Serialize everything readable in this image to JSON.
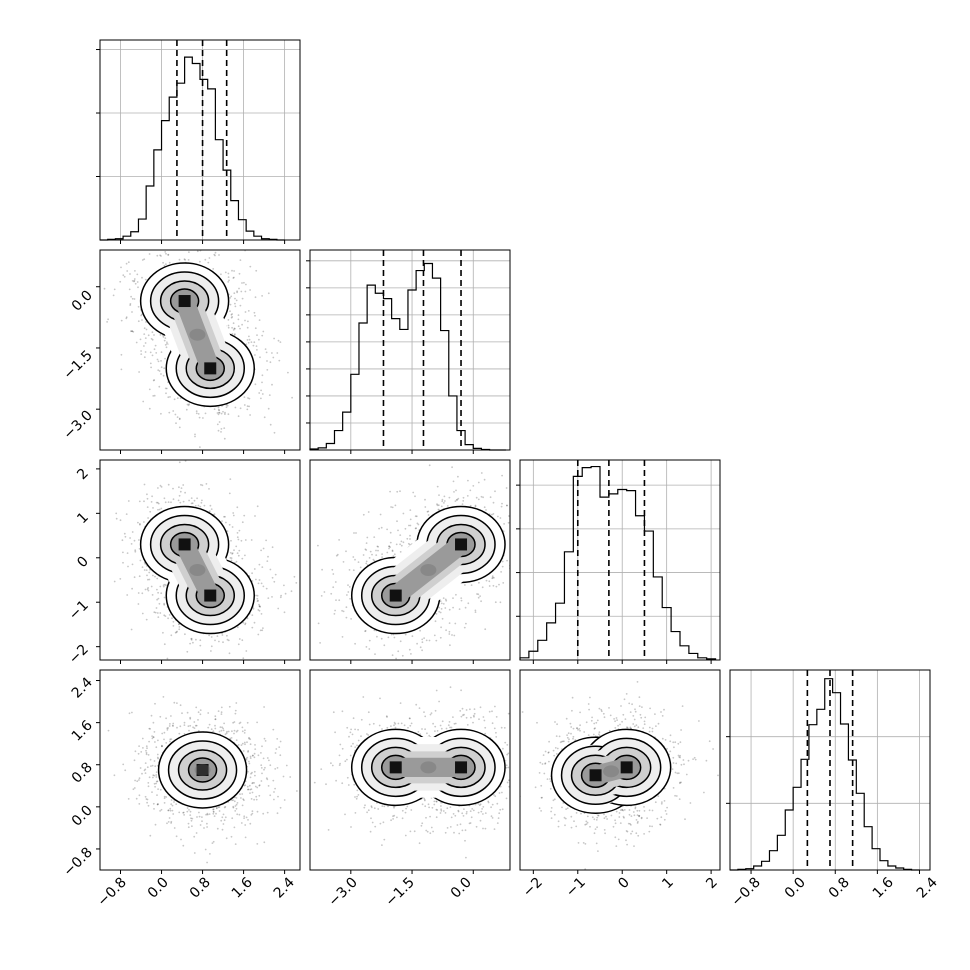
{
  "chart_data": [
    {
      "type": "histogram",
      "panel": [
        0,
        0
      ],
      "variable": 0,
      "range": [
        -1.2,
        2.7
      ],
      "bin_edges": [
        -1.2,
        -1.05,
        -0.9,
        -0.75,
        -0.6,
        -0.45,
        -0.3,
        -0.15,
        0.0,
        0.15,
        0.3,
        0.45,
        0.6,
        0.75,
        0.9,
        1.05,
        1.2,
        1.35,
        1.5,
        1.65,
        1.8,
        1.95,
        2.1,
        2.25,
        2.4
      ],
      "counts": [
        0,
        10,
        20,
        60,
        130,
        330,
        850,
        1420,
        1880,
        2250,
        2470,
        2880,
        2780,
        2530,
        2380,
        1580,
        1100,
        620,
        320,
        140,
        60,
        20,
        10,
        0
      ],
      "count_ymax": 3150,
      "quantile_lines": [
        0.3,
        0.8,
        1.27
      ],
      "grid_x": [
        -0.8,
        0.0,
        0.8,
        1.6,
        2.4
      ],
      "grid_y": [
        1000,
        2000,
        3000
      ]
    },
    {
      "type": "histogram",
      "panel": [
        1,
        1
      ],
      "variable": 1,
      "range": [
        -4.0,
        0.9
      ],
      "bin_edges": [
        -4.0,
        -3.8,
        -3.6,
        -3.4,
        -3.2,
        -3.0,
        -2.8,
        -2.6,
        -2.4,
        -2.2,
        -2.0,
        -1.8,
        -1.6,
        -1.4,
        -1.2,
        -1.0,
        -0.8,
        -0.6,
        -0.4,
        -0.2,
        0.0,
        0.2,
        0.4,
        0.6,
        0.8
      ],
      "counts": [
        20,
        40,
        120,
        360,
        700,
        1400,
        2350,
        3050,
        2900,
        2800,
        2430,
        2230,
        2960,
        3320,
        3450,
        3180,
        2210,
        1000,
        360,
        100,
        30,
        10,
        0,
        0
      ],
      "count_ymax": 3700,
      "quantile_lines": [
        -2.2,
        -1.22,
        -0.3
      ],
      "grid_x": [
        -3.0,
        -1.5,
        0.0
      ],
      "grid_y": [
        500,
        1000,
        1500,
        2000,
        2500,
        3000,
        3500
      ]
    },
    {
      "type": "histogram",
      "panel": [
        2,
        2
      ],
      "variable": 2,
      "range": [
        -2.3,
        2.2
      ],
      "bin_edges": [
        -2.3,
        -2.1,
        -1.9,
        -1.7,
        -1.5,
        -1.3,
        -1.1,
        -0.9,
        -0.7,
        -0.5,
        -0.3,
        -0.1,
        0.1,
        0.3,
        0.5,
        0.7,
        0.9,
        1.1,
        1.3,
        1.5,
        1.7,
        1.9,
        2.1
      ],
      "counts": [
        20,
        80,
        180,
        340,
        520,
        990,
        1680,
        1760,
        1770,
        1490,
        1520,
        1560,
        1550,
        1320,
        1180,
        760,
        480,
        260,
        130,
        60,
        20,
        10
      ],
      "count_ymax": 1830,
      "quantile_lines": [
        -1.0,
        -0.3,
        0.5
      ],
      "grid_x": [
        -2,
        -1,
        0,
        1,
        2
      ],
      "grid_y": [
        400,
        800,
        1200,
        1600
      ]
    },
    {
      "type": "histogram",
      "panel": [
        3,
        3
      ],
      "variable": 3,
      "range": [
        -1.2,
        2.6
      ],
      "bin_edges": [
        -1.2,
        -1.05,
        -0.9,
        -0.75,
        -0.6,
        -0.45,
        -0.3,
        -0.15,
        0.0,
        0.15,
        0.3,
        0.45,
        0.6,
        0.75,
        0.9,
        1.05,
        1.2,
        1.35,
        1.5,
        1.65,
        1.8,
        1.95,
        2.1,
        2.25,
        2.4
      ],
      "counts": [
        0,
        10,
        20,
        60,
        130,
        290,
        520,
        900,
        1240,
        1660,
        2180,
        2410,
        2870,
        2660,
        2190,
        1650,
        1150,
        650,
        320,
        140,
        60,
        30,
        10,
        0
      ],
      "count_ymax": 3000,
      "quantile_lines": [
        0.27,
        0.7,
        1.13
      ],
      "grid_x": [
        -0.8,
        0.0,
        0.8,
        1.6,
        2.4
      ],
      "grid_y": [
        1000,
        2000
      ]
    },
    {
      "type": "heatmap",
      "panel": [
        1,
        0
      ],
      "x_variable": 0,
      "y_variable": 1,
      "xrange": [
        -1.2,
        2.7
      ],
      "yrange": [
        -4.0,
        0.9
      ],
      "modes": [
        {
          "x": 0.45,
          "y": -0.35
        },
        {
          "x": 0.95,
          "y": -2.0
        }
      ]
    },
    {
      "type": "heatmap",
      "panel": [
        2,
        0
      ],
      "x_variable": 0,
      "y_variable": 2,
      "xrange": [
        -1.2,
        2.7
      ],
      "yrange": [
        -2.3,
        2.2
      ],
      "modes": [
        {
          "x": 0.45,
          "y": 0.3
        },
        {
          "x": 0.95,
          "y": -0.85
        }
      ]
    },
    {
      "type": "heatmap",
      "panel": [
        2,
        1
      ],
      "x_variable": 1,
      "y_variable": 2,
      "xrange": [
        -4.0,
        0.9
      ],
      "yrange": [
        -2.3,
        2.2
      ],
      "modes": [
        {
          "x": -1.9,
          "y": -0.85
        },
        {
          "x": -0.3,
          "y": 0.3
        }
      ]
    },
    {
      "type": "heatmap",
      "panel": [
        3,
        0
      ],
      "x_variable": 0,
      "y_variable": 3,
      "xrange": [
        -1.2,
        2.7
      ],
      "yrange": [
        -1.2,
        2.6
      ],
      "modes": [
        {
          "x": 0.8,
          "y": 0.7
        }
      ]
    },
    {
      "type": "heatmap",
      "panel": [
        3,
        1
      ],
      "x_variable": 1,
      "y_variable": 3,
      "xrange": [
        -4.0,
        0.9
      ],
      "yrange": [
        -1.2,
        2.6
      ],
      "modes": [
        {
          "x": -1.9,
          "y": 0.75
        },
        {
          "x": -0.3,
          "y": 0.75
        }
      ]
    },
    {
      "type": "heatmap",
      "panel": [
        3,
        2
      ],
      "x_variable": 2,
      "y_variable": 3,
      "xrange": [
        -2.3,
        2.2
      ],
      "yrange": [
        -1.2,
        2.6
      ],
      "modes": [
        {
          "x": -0.6,
          "y": 0.6
        },
        {
          "x": 0.1,
          "y": 0.75
        }
      ]
    }
  ],
  "tick_labels": {
    "x_col0": [
      "−0.8",
      "0.0",
      "0.8",
      "1.6",
      "2.4"
    ],
    "x_col1": [
      "−3.0",
      "−1.5",
      "0.0"
    ],
    "x_col2": [
      "−2",
      "−1",
      "0",
      "1",
      "2"
    ],
    "x_col3": [
      "−0.8",
      "0.0",
      "0.8",
      "1.6",
      "2.4"
    ],
    "y_row1": [
      "0.0",
      "−1.5",
      "−3.0"
    ],
    "y_row2": [
      "2",
      "1",
      "0",
      "−1",
      "−2"
    ],
    "y_row3": [
      "2.4",
      "1.6",
      "0.8",
      "0.0",
      "−0.8"
    ]
  }
}
